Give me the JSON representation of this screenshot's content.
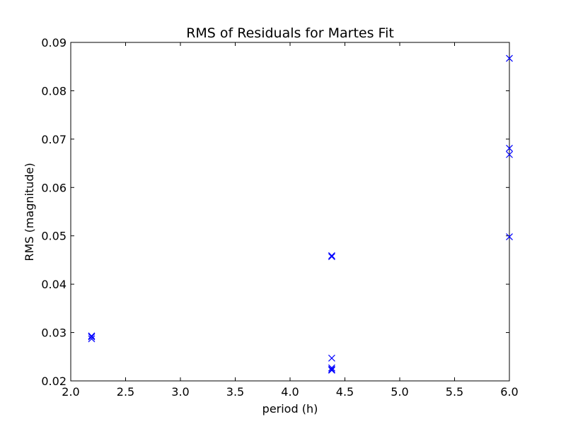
{
  "chart_data": {
    "type": "scatter",
    "title": "RMS of Residuals for Martes Fit",
    "xlabel": "period (h)",
    "ylabel": "RMS (magnitude)",
    "xlim": [
      2.0,
      6.0
    ],
    "ylim": [
      0.02,
      0.09
    ],
    "xticks": [
      "2.0",
      "2.5",
      "3.0",
      "3.5",
      "4.0",
      "4.5",
      "5.0",
      "5.5",
      "6.0"
    ],
    "yticks": [
      "0.02",
      "0.03",
      "0.04",
      "0.05",
      "0.06",
      "0.07",
      "0.08",
      "0.09"
    ],
    "grid": false,
    "marker": "x",
    "color": "#0000ff",
    "points": [
      {
        "x": 2.19,
        "y": 0.0293
      },
      {
        "x": 2.19,
        "y": 0.0291
      },
      {
        "x": 2.19,
        "y": 0.0287
      },
      {
        "x": 4.38,
        "y": 0.0459
      },
      {
        "x": 4.38,
        "y": 0.0457
      },
      {
        "x": 4.38,
        "y": 0.0247
      },
      {
        "x": 4.38,
        "y": 0.0227
      },
      {
        "x": 4.38,
        "y": 0.0224
      },
      {
        "x": 4.38,
        "y": 0.0222
      },
      {
        "x": 6.0,
        "y": 0.0867
      },
      {
        "x": 6.0,
        "y": 0.0681
      },
      {
        "x": 6.0,
        "y": 0.0668
      },
      {
        "x": 6.0,
        "y": 0.0498
      }
    ]
  }
}
